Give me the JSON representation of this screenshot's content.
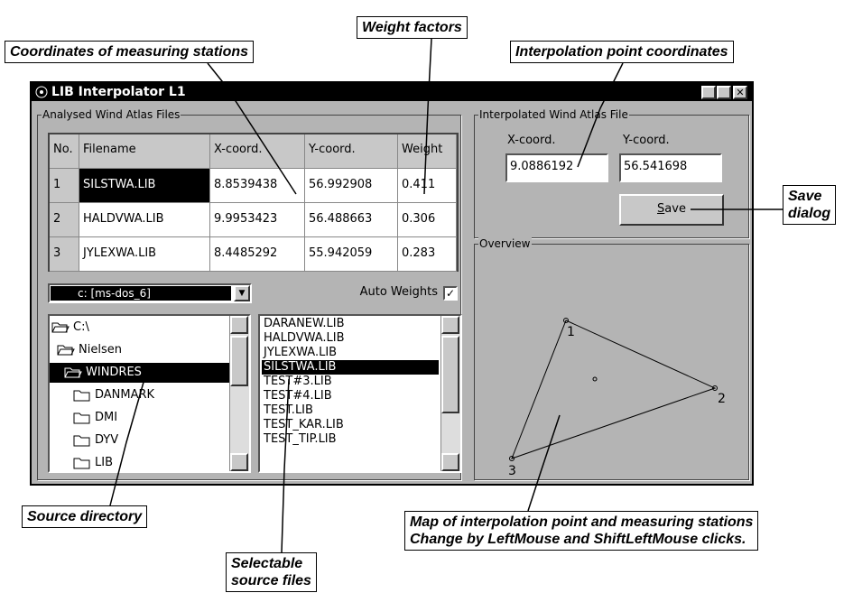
{
  "annotations": {
    "coordinates": "Coordinates of measuring stations",
    "weights": "Weight factors",
    "interpolation": "Interpolation point coordinates",
    "save": [
      "Save",
      "dialog"
    ],
    "source_directory": "Source directory",
    "selectable": [
      "Selectable",
      "source files"
    ],
    "map": [
      "Map of interpolation point and measuring stations",
      "Change by LeftMouse and ShiftLeftMouse clicks."
    ]
  },
  "window": {
    "title": "LIB Interpolator L1",
    "analysed": {
      "title": "Analysed Wind Atlas Files",
      "table": {
        "headers": [
          "No.",
          "Filename",
          "X-coord.",
          "Y-coord.",
          "Weight"
        ],
        "rows": [
          [
            "1",
            "SILSTWA.LIB",
            "8.8539438",
            "56.992908",
            "0.411"
          ],
          [
            "2",
            "HALDVWA.LIB",
            "9.9953423",
            "56.488663",
            "0.306"
          ],
          [
            "3",
            "JYLEXWA.LIB",
            "8.4485292",
            "55.942059",
            "0.283"
          ]
        ]
      },
      "drive": "c: [ms-dos_6]",
      "auto_weights": "Auto Weights",
      "directories": [
        "C:\\",
        "Nielsen",
        "WINDRES",
        "DANMARK",
        "DMI",
        "DYV",
        "LIB"
      ],
      "files": [
        "DARANEW.LIB",
        "HALDVWA.LIB",
        "JYLEXWA.LIB",
        "SILSTWA.LIB",
        "TEST#3.LIB",
        "TEST#4.LIB",
        "TEST.LIB",
        "TEST_KAR.LIB",
        "TEST_TIP.LIB"
      ]
    },
    "interpolated": {
      "title": "Interpolated Wind Atlas File",
      "x_label": "X-coord.",
      "y_label": "Y-coord.",
      "x_value": "9.0886192",
      "y_value": "56.541698",
      "save": "Save"
    },
    "overview": {
      "title": "Overview",
      "stations": [
        "1",
        "2",
        "3"
      ]
    }
  }
}
